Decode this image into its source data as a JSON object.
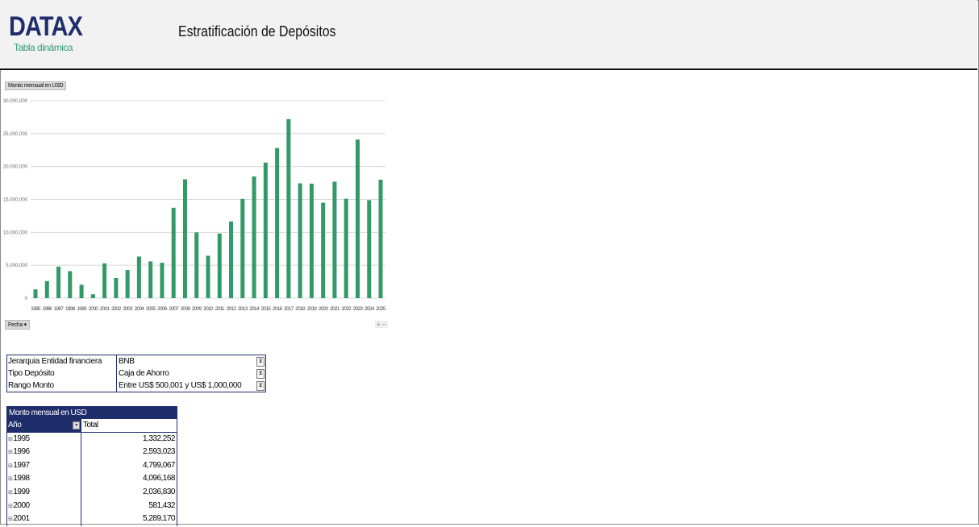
{
  "header": {
    "logo": "DATAX",
    "subtitle": "Tabla dinámica",
    "title": "Estratificación de Depósitos"
  },
  "chart_controls": {
    "value_field": "Monto mensual en USD",
    "axis_field": "Fecha",
    "zoom_buttons": "+ −"
  },
  "chart_data": {
    "type": "bar",
    "categories": [
      "1995",
      "1996",
      "1997",
      "1998",
      "1999",
      "2000",
      "2001",
      "2002",
      "2003",
      "2004",
      "2005",
      "2006",
      "2007",
      "2008",
      "2009",
      "2010",
      "2011",
      "2012",
      "2013",
      "2014",
      "2015",
      "2016",
      "2017",
      "2018",
      "2019",
      "2020",
      "2021",
      "2022",
      "2023",
      "2024",
      "2025"
    ],
    "values": [
      1332252,
      2593023,
      4799067,
      4096168,
      2036830,
      581432,
      5289170,
      3060000,
      4280000,
      6320000,
      5580000,
      5380000,
      13740000,
      18060000,
      9990000,
      6440000,
      9820000,
      11660000,
      15080000,
      18500000,
      20600000,
      22800000,
      27200000,
      17450000,
      17400000,
      14500000,
      17700000,
      15100000,
      24100000,
      14900000,
      18000000
    ],
    "ylim": [
      0,
      30000000
    ],
    "yticks": [
      "0",
      "5,000,000",
      "10,000,000",
      "15,000,000",
      "20,000,000",
      "25,000,000",
      "30,000,000"
    ],
    "grid": true,
    "color": "#339966"
  },
  "filters": [
    {
      "label": "Jerarquia Entidad financiera",
      "value": "BNB"
    },
    {
      "label": "Tipo Depósito",
      "value": "Caja de Ahorro"
    },
    {
      "label": "Rango Monto",
      "value": "Entre US$ 500,001 y US$ 1,000,000"
    }
  ],
  "pivot": {
    "title": "Monto mensual en USD",
    "row_header": "Año",
    "col_header": "Total",
    "rows": [
      {
        "year": "1995",
        "total": "1,332,252"
      },
      {
        "year": "1996",
        "total": "2,593,023"
      },
      {
        "year": "1997",
        "total": "4,799,067"
      },
      {
        "year": "1998",
        "total": "4,096,168"
      },
      {
        "year": "1999",
        "total": "2,036,830"
      },
      {
        "year": "2000",
        "total": "581,432"
      },
      {
        "year": "2001",
        "total": "5,289,170"
      }
    ]
  }
}
